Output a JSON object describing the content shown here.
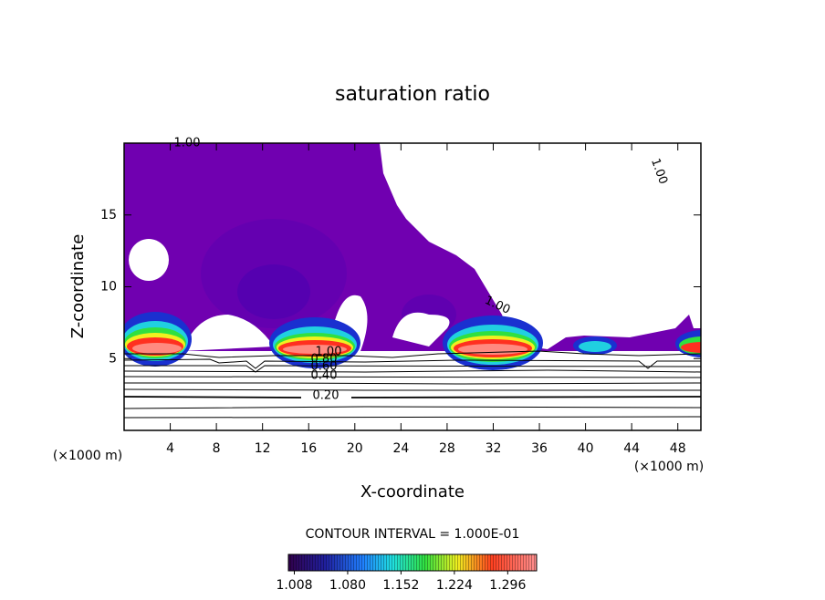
{
  "chart_data": {
    "type": "contour",
    "title": "saturation ratio",
    "x_label": "X-coordinate",
    "y_label": "Z-coordinate",
    "x_unit": "(×1000 m)",
    "y_unit": "(×1000 m)",
    "xlim": [
      0,
      50
    ],
    "xticks": [
      4,
      8,
      12,
      16,
      20,
      24,
      28,
      32,
      36,
      40,
      44,
      48
    ],
    "ylim": [
      0,
      20
    ],
    "yticks": [
      5,
      10,
      15
    ],
    "contour_labels": [
      {
        "value": 1,
        "label": "1.00"
      },
      {
        "value": 1,
        "label": "1.00"
      },
      {
        "value": 1,
        "label": "1.00"
      },
      {
        "value": 1,
        "label": "1.00"
      },
      {
        "value": 0.8,
        "label": "0.80"
      },
      {
        "value": 0.6,
        "label": "0.60"
      },
      {
        "value": 0.4,
        "label": "0.40"
      },
      {
        "value": 0.2,
        "label": "0.20"
      }
    ],
    "contour_interval": "CONTOUR INTERVAL = 1.000E-01",
    "colorbar_lim": [
      1.0,
      1.335
    ],
    "colorbar_ticks": [
      1.008,
      {
        "value": 1.08,
        "label": "1.080"
      },
      1.152,
      1.224,
      1.296
    ]
  }
}
